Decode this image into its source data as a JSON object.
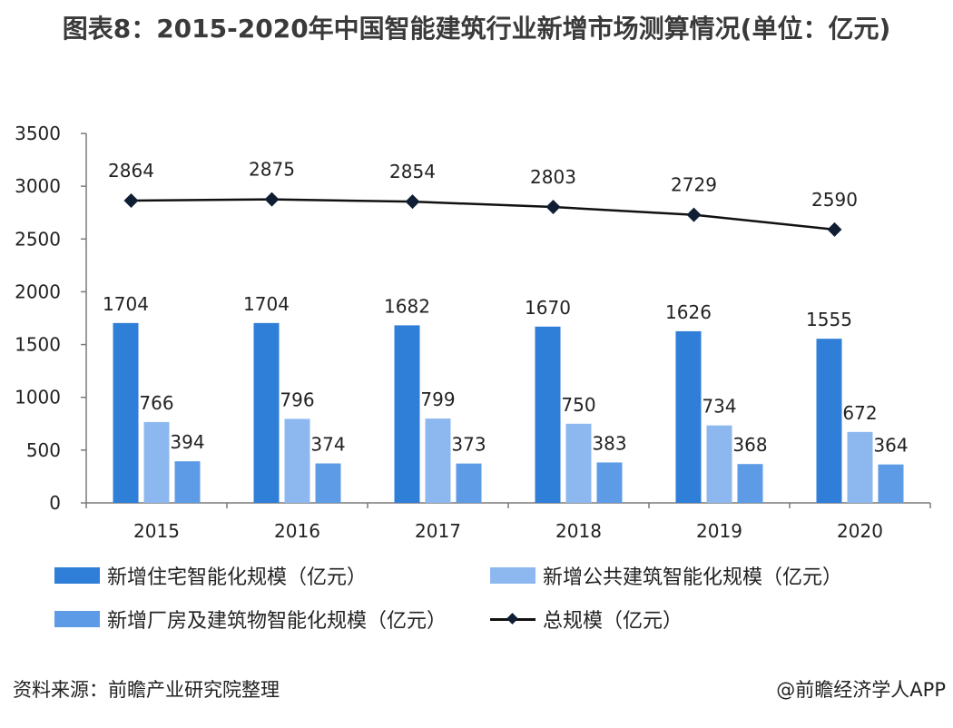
{
  "title": "图表8：2015-2020年中国智能建筑行业新增市场测算情况(单位：亿元)",
  "source": "资料来源：前瞻产业研究院整理",
  "brand": "@前瞻经济学人APP",
  "chart_data": {
    "type": "bar",
    "title": "图表8：2015-2020年中国智能建筑行业新增市场测算情况(单位：亿元)",
    "categories": [
      "2015",
      "2016",
      "2017",
      "2018",
      "2019",
      "2020"
    ],
    "ylim": [
      0,
      3500
    ],
    "yticks": [
      "0",
      "500",
      "1000",
      "1500",
      "2000",
      "2500",
      "3000",
      "3500"
    ],
    "grid": false,
    "legend_position": "bottom",
    "series": [
      {
        "name": "新增住宅智能化规模（亿元）",
        "type": "bar",
        "color": "#2f7ed8",
        "values": [
          1704,
          1704,
          1682,
          1670,
          1626,
          1555
        ]
      },
      {
        "name": "新增公共建筑智能化规模（亿元）",
        "type": "bar",
        "color": "#8db8ef",
        "values": [
          766,
          796,
          799,
          750,
          734,
          672
        ]
      },
      {
        "name": "新增厂房及建筑物智能化规模（亿元）",
        "type": "bar",
        "color": "#5d9be6",
        "values": [
          394,
          374,
          373,
          383,
          368,
          364
        ]
      },
      {
        "name": "总规模（亿元）",
        "type": "line",
        "color": "#111111",
        "marker": "diamond",
        "values": [
          2864,
          2875,
          2854,
          2803,
          2729,
          2590
        ]
      }
    ]
  }
}
